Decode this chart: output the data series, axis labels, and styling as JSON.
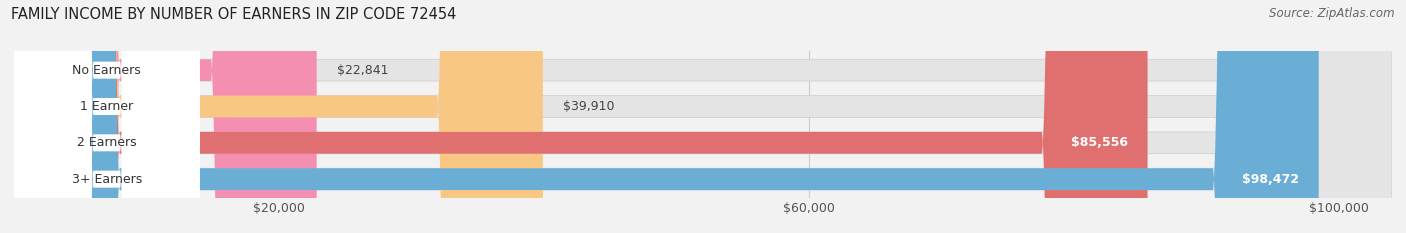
{
  "title": "FAMILY INCOME BY NUMBER OF EARNERS IN ZIP CODE 72454",
  "source": "Source: ZipAtlas.com",
  "categories": [
    "No Earners",
    "1 Earner",
    "2 Earners",
    "3+ Earners"
  ],
  "values": [
    22841,
    39910,
    85556,
    98472
  ],
  "bar_colors": [
    "#f48fb1",
    "#f9c784",
    "#e07070",
    "#6aaed6"
  ],
  "label_colors": [
    "#444444",
    "#444444",
    "#ffffff",
    "#ffffff"
  ],
  "value_labels": [
    "$22,841",
    "$39,910",
    "$85,556",
    "$98,472"
  ],
  "x_ticks": [
    20000,
    60000,
    100000
  ],
  "x_tick_labels": [
    "$20,000",
    "$60,000",
    "$100,000"
  ],
  "xlim_max": 104000,
  "background_color": "#f2f2f2",
  "bar_background_color": "#e4e4e4",
  "title_fontsize": 10.5,
  "source_fontsize": 8.5,
  "label_fontsize": 9,
  "value_fontsize": 9,
  "tick_fontsize": 9
}
